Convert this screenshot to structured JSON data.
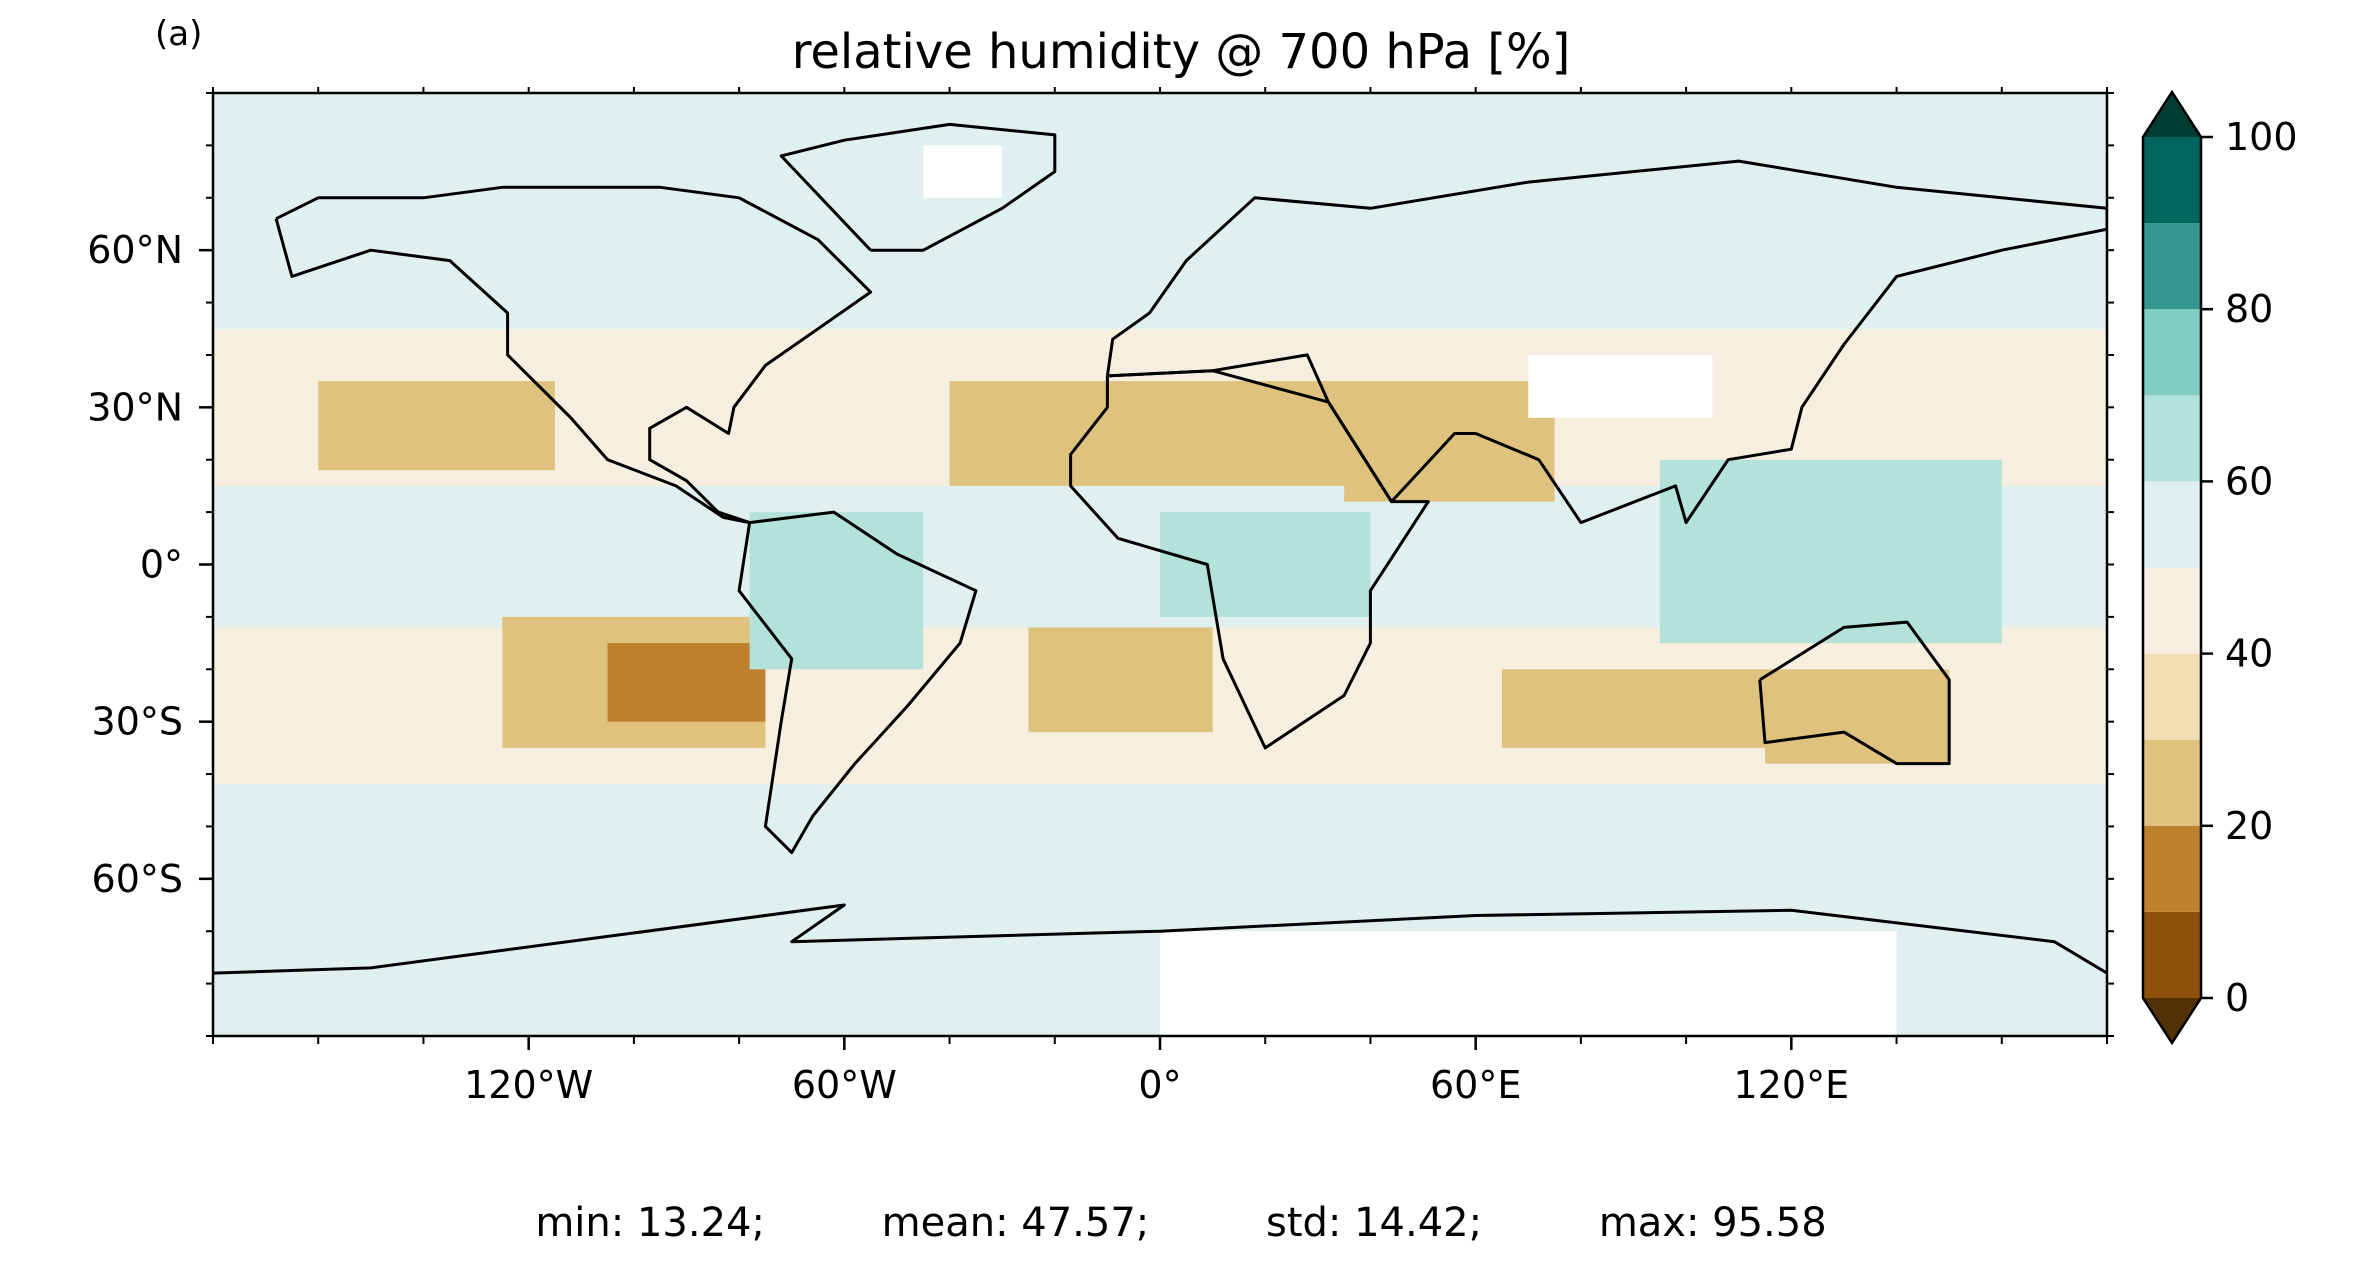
{
  "figure": {
    "panel_label": "(a)",
    "stats": {
      "min": "min: 13.24;",
      "mean": "mean: 47.57;",
      "std": "std: 14.42;",
      "max": "max: 95.58"
    }
  },
  "chart_data": {
    "type": "heatmap",
    "title": "relative humidity @ 700 hPa [%]",
    "projection": "PlateCarree",
    "xlim": [
      -180,
      180
    ],
    "ylim": [
      -90,
      90
    ],
    "x_ticks": [
      {
        "value": -120,
        "label": "120°W"
      },
      {
        "value": -60,
        "label": "60°W"
      },
      {
        "value": 0,
        "label": "0°"
      },
      {
        "value": 60,
        "label": "60°E"
      },
      {
        "value": 120,
        "label": "120°E"
      }
    ],
    "y_ticks": [
      {
        "value": 60,
        "label": "60°N"
      },
      {
        "value": 30,
        "label": "30°N"
      },
      {
        "value": 0,
        "label": "0°"
      },
      {
        "value": -30,
        "label": "30°S"
      },
      {
        "value": -60,
        "label": "60°S"
      }
    ],
    "colorbar": {
      "levels": [
        0,
        10,
        20,
        30,
        40,
        50,
        60,
        70,
        80,
        90,
        100
      ],
      "colors": [
        "#8c510a",
        "#bf812d",
        "#dfc27d",
        "#f0dfb5",
        "#f6efe0",
        "#dff0ee",
        "#b2e2da",
        "#80cdc1",
        "#35978f",
        "#01665e"
      ],
      "under_color": "#543005",
      "over_color": "#003c30",
      "extend": "both",
      "tick_labels": [
        "0",
        "20",
        "40",
        "60",
        "80",
        "100"
      ],
      "tick_values": [
        0,
        20,
        40,
        60,
        80,
        100
      ]
    },
    "stats": {
      "min": 13.24,
      "mean": 47.57,
      "std": 14.42,
      "max": 95.58
    },
    "regions": [
      {
        "name": "background mid-humid",
        "level": 55,
        "lon": [
          -180,
          180
        ],
        "lat": [
          -90,
          90
        ]
      },
      {
        "name": "NH subtropical dry band",
        "level": 45,
        "lon": [
          -180,
          180
        ],
        "lat": [
          15,
          45
        ]
      },
      {
        "name": "SH subtropical dry band",
        "level": 45,
        "lon": [
          -180,
          180
        ],
        "lat": [
          -42,
          -12
        ]
      },
      {
        "name": "Saharan dry",
        "level": 25,
        "lon": [
          -40,
          60
        ],
        "lat": [
          15,
          35
        ]
      },
      {
        "name": "Arabia dry",
        "level": 25,
        "lon": [
          35,
          75
        ],
        "lat": [
          12,
          35
        ]
      },
      {
        "name": "NE Pacific dry",
        "level": 25,
        "lon": [
          -160,
          -115
        ],
        "lat": [
          18,
          35
        ]
      },
      {
        "name": "SE Pacific dry",
        "level": 25,
        "lon": [
          -125,
          -75
        ],
        "lat": [
          -35,
          -10
        ]
      },
      {
        "name": "SE Pacific driest",
        "level": 15,
        "lon": [
          -105,
          -75
        ],
        "lat": [
          -30,
          -15
        ]
      },
      {
        "name": "S Atlantic dry",
        "level": 25,
        "lon": [
          -25,
          10
        ],
        "lat": [
          -32,
          -12
        ]
      },
      {
        "name": "S Indian dry",
        "level": 25,
        "lon": [
          65,
          115
        ],
        "lat": [
          -35,
          -20
        ]
      },
      {
        "name": "Australia dry",
        "level": 25,
        "lon": [
          115,
          150
        ],
        "lat": [
          -38,
          -20
        ]
      },
      {
        "name": "Amazon humid",
        "level": 65,
        "lon": [
          -78,
          -45
        ],
        "lat": [
          -20,
          10
        ]
      },
      {
        "name": "Congo humid",
        "level": 65,
        "lon": [
          0,
          40
        ],
        "lat": [
          -10,
          10
        ]
      },
      {
        "name": "Maritime continent humid",
        "level": 65,
        "lon": [
          95,
          160
        ],
        "lat": [
          -15,
          20
        ]
      },
      {
        "name": "Tibet masked",
        "level": null,
        "lon": [
          70,
          105
        ],
        "lat": [
          28,
          40
        ]
      },
      {
        "name": "Greenland masked",
        "level": null,
        "lon": [
          -45,
          -30
        ],
        "lat": [
          70,
          80
        ]
      },
      {
        "name": "Antarctica masked",
        "level": null,
        "lon": [
          0,
          140
        ],
        "lat": [
          -90,
          -70
        ]
      }
    ]
  }
}
